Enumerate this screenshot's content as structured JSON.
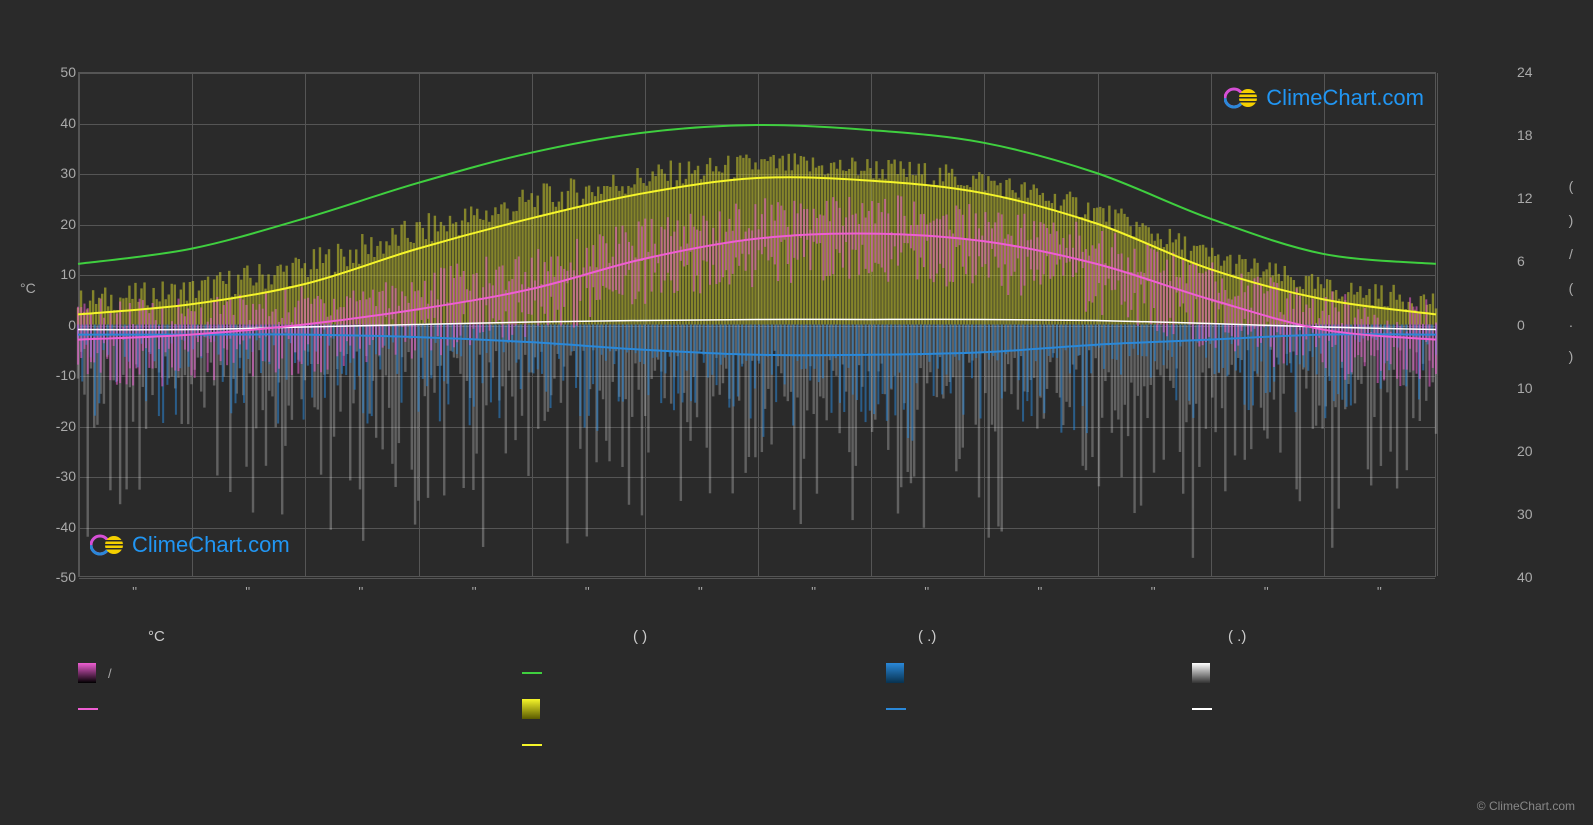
{
  "chart": {
    "background_color": "#2a2a2a",
    "grid_color": "#555555",
    "text_color": "#aaaaaa",
    "left_axis": {
      "label": "°C",
      "min": -50,
      "max": 50,
      "ticks": [
        50,
        40,
        30,
        20,
        10,
        0,
        -10,
        -20,
        -30,
        -40,
        -50
      ]
    },
    "right_axis": {
      "label_parts": [
        "(",
        ")",
        "/",
        "(",
        ".",
        ")"
      ],
      "top_min": 0,
      "top_max": 24,
      "top_ticks": [
        24,
        18,
        12,
        6,
        0
      ],
      "bottom_ticks": [
        10,
        20,
        30,
        40
      ]
    },
    "x_axis": {
      "months_count": 12,
      "tick_label": "''"
    },
    "series": {
      "green_line": {
        "color": "#3fcf3f",
        "width": 2,
        "values": [
          12,
          15,
          21,
          28,
          34,
          38,
          39.5,
          38.5,
          36,
          30,
          21,
          14,
          12
        ]
      },
      "yellow_line": {
        "color": "#f5f52a",
        "width": 2,
        "values": [
          2,
          4,
          8,
          15,
          21,
          26,
          29,
          28.5,
          26,
          20,
          11,
          5,
          2
        ]
      },
      "magenta_line": {
        "color": "#ee5ed2",
        "width": 2,
        "values": [
          -3,
          -2,
          0,
          3,
          7,
          13,
          17,
          18,
          16.5,
          12,
          5,
          -1,
          -3
        ]
      },
      "white_line": {
        "color": "#ffffff",
        "width": 1.5,
        "values": [
          -1,
          -1,
          -0.5,
          0,
          0.5,
          0.8,
          1,
          1,
          1,
          0.8,
          0.2,
          -0.5,
          -1
        ]
      },
      "blue_line": {
        "color": "#2a88d8",
        "width": 2,
        "values": [
          -2,
          -2,
          -2,
          -2.5,
          -3.5,
          -5,
          -6,
          -6,
          -5.5,
          -4,
          -3,
          -2,
          -2
        ]
      },
      "magenta_bars": {
        "color": "#ee5ed2",
        "opacity": 0.55
      },
      "yellow_bars": {
        "color": "#cfcf2a",
        "opacity": 0.55
      },
      "blue_bars": {
        "color": "#2a88d8",
        "opacity": 0.55
      },
      "white_bars": {
        "color": "#eeeeee",
        "opacity": 0.28
      }
    },
    "legend_header": {
      "c1": "°C",
      "c2": "(        )",
      "c3": "(  .)",
      "c4": "(  .)"
    },
    "legend": {
      "col1": {
        "grad": {
          "top": "#ee5ed2",
          "bottom": "#000000",
          "label": "/"
        },
        "line": {
          "color": "#ee5ed2",
          "label": ""
        }
      },
      "col2": {
        "line_top": {
          "color": "#3fcf3f",
          "label": ""
        },
        "grad": {
          "top": "#f5f52a",
          "bottom": "#5a5a00",
          "label": ""
        },
        "line_bot": {
          "color": "#f5f52a",
          "label": ""
        }
      },
      "col3": {
        "grad": {
          "top": "#2a88d8",
          "bottom": "#08324f",
          "label": ""
        },
        "line": {
          "color": "#2a88d8",
          "label": ""
        }
      },
      "col4": {
        "grad": {
          "top": "#ffffff",
          "bottom": "#333333",
          "label": ""
        },
        "line": {
          "color": "#ffffff",
          "label": ""
        }
      }
    },
    "watermark": {
      "text": "ClimeChart.com",
      "color": "#2196f3"
    },
    "copyright": "© ClimeChart.com"
  }
}
